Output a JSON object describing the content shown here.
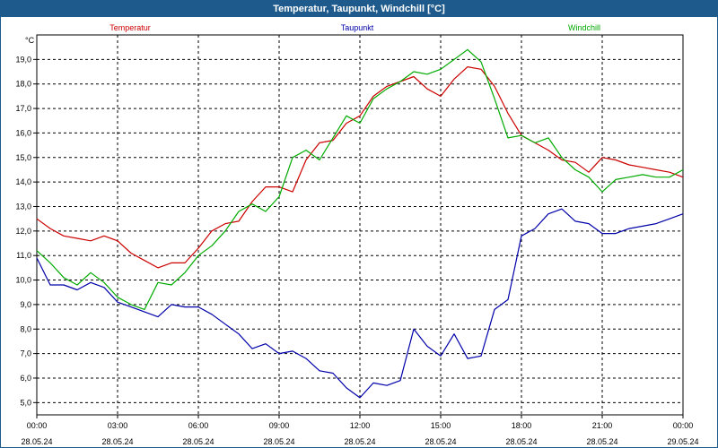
{
  "window": {
    "title": "Temperatur, Taupunkt, Windchill [°C]"
  },
  "chart_data": {
    "type": "line",
    "title": "Temperatur, Taupunkt, Windchill [°C]",
    "ylabel": "°C",
    "xlabel": "",
    "ylim": [
      4.5,
      20.0
    ],
    "xlim": [
      0,
      24
    ],
    "yticks": [
      5.0,
      6.0,
      7.0,
      8.0,
      9.0,
      10.0,
      11.0,
      12.0,
      13.0,
      14.0,
      15.0,
      16.0,
      17.0,
      18.0,
      19.0
    ],
    "ytick_labels": [
      "5,0",
      "6,0",
      "7,0",
      "8,0",
      "9,0",
      "10,0",
      "11,0",
      "12,0",
      "13,0",
      "14,0",
      "15,0",
      "16,0",
      "17,0",
      "18,0",
      "19,0"
    ],
    "xticks": [
      {
        "x": 0,
        "time": "00:00",
        "date": "28.05.24"
      },
      {
        "x": 3,
        "time": "03:00",
        "date": "28.05.24"
      },
      {
        "x": 6,
        "time": "06:00",
        "date": "28.05.24"
      },
      {
        "x": 9,
        "time": "09:00",
        "date": "28.05.24"
      },
      {
        "x": 12,
        "time": "12:00",
        "date": "28.05.24"
      },
      {
        "x": 15,
        "time": "15:00",
        "date": "28.05.24"
      },
      {
        "x": 18,
        "time": "18:00",
        "date": "28.05.24"
      },
      {
        "x": 21,
        "time": "21:00",
        "date": "28.05.24"
      },
      {
        "x": 24,
        "time": "00:00",
        "date": "29.05.24"
      }
    ],
    "grid": true,
    "legend_position": "top",
    "series": [
      {
        "name": "Temperatur",
        "color": "#cc0000",
        "x": [
          0,
          0.5,
          1.0,
          1.5,
          2.0,
          2.5,
          3.0,
          3.5,
          4.0,
          4.5,
          5.0,
          5.5,
          6.0,
          6.5,
          7.0,
          7.5,
          8.0,
          8.5,
          9.0,
          9.5,
          10.0,
          10.5,
          11.0,
          11.5,
          12.0,
          12.5,
          13.0,
          13.5,
          14.0,
          14.5,
          15.0,
          15.5,
          16.0,
          16.5,
          17.0,
          17.5,
          18.0,
          18.5,
          19.0,
          19.5,
          20.0,
          20.5,
          21.0,
          21.5,
          22.0,
          22.5,
          23.0,
          23.5,
          24.0
        ],
        "values": [
          12.5,
          12.1,
          11.8,
          11.7,
          11.6,
          11.8,
          11.6,
          11.1,
          10.8,
          10.5,
          10.7,
          10.7,
          11.3,
          12.0,
          12.3,
          12.4,
          13.2,
          13.8,
          13.8,
          13.6,
          14.9,
          15.6,
          15.7,
          16.4,
          16.7,
          17.5,
          17.9,
          18.1,
          18.3,
          17.8,
          17.5,
          18.2,
          18.7,
          18.6,
          17.9,
          16.8,
          15.9,
          15.6,
          15.3,
          14.9,
          14.8,
          14.4,
          15.0,
          14.9,
          14.7,
          14.6,
          14.5,
          14.4,
          14.2
        ]
      },
      {
        "name": "Taupunkt",
        "color": "#0000aa",
        "x": [
          0,
          0.5,
          1.0,
          1.5,
          2.0,
          2.5,
          3.0,
          3.5,
          4.0,
          4.5,
          5.0,
          5.5,
          6.0,
          6.5,
          7.0,
          7.5,
          8.0,
          8.5,
          9.0,
          9.5,
          10.0,
          10.5,
          11.0,
          11.5,
          12.0,
          12.5,
          13.0,
          13.5,
          14.0,
          14.5,
          15.0,
          15.5,
          16.0,
          16.5,
          17.0,
          17.5,
          18.0,
          18.5,
          19.0,
          19.5,
          20.0,
          20.5,
          21.0,
          21.5,
          22.0,
          22.5,
          23.0,
          23.5,
          24.0
        ],
        "values": [
          10.9,
          9.8,
          9.8,
          9.6,
          9.9,
          9.7,
          9.1,
          8.9,
          8.7,
          8.5,
          9.0,
          8.9,
          8.9,
          8.6,
          8.2,
          7.8,
          7.2,
          7.4,
          7.0,
          7.1,
          6.8,
          6.3,
          6.2,
          5.6,
          5.2,
          5.8,
          5.7,
          5.9,
          8.0,
          7.3,
          6.9,
          7.8,
          6.8,
          6.9,
          8.8,
          9.2,
          11.8,
          12.1,
          12.7,
          12.9,
          12.4,
          12.3,
          11.9,
          11.9,
          12.1,
          12.2,
          12.3,
          12.5,
          12.7
        ]
      },
      {
        "name": "Windchill",
        "color": "#00aa00",
        "x": [
          0,
          0.5,
          1.0,
          1.5,
          2.0,
          2.5,
          3.0,
          3.5,
          4.0,
          4.5,
          5.0,
          5.5,
          6.0,
          6.5,
          7.0,
          7.5,
          8.0,
          8.5,
          9.0,
          9.5,
          10.0,
          10.5,
          11.0,
          11.5,
          12.0,
          12.5,
          13.0,
          13.5,
          14.0,
          14.5,
          15.0,
          15.5,
          16.0,
          16.5,
          17.0,
          17.5,
          18.0,
          18.5,
          19.0,
          19.5,
          20.0,
          20.5,
          21.0,
          21.5,
          22.0,
          22.5,
          23.0,
          23.5,
          24.0
        ],
        "values": [
          11.2,
          10.7,
          10.1,
          9.8,
          10.3,
          9.9,
          9.3,
          9.0,
          8.8,
          9.9,
          9.8,
          10.3,
          11.0,
          11.4,
          12.0,
          12.8,
          13.1,
          12.8,
          13.4,
          15.0,
          15.3,
          14.9,
          15.8,
          16.7,
          16.4,
          17.4,
          17.8,
          18.1,
          18.5,
          18.4,
          18.6,
          19.0,
          19.4,
          18.9,
          17.4,
          15.8,
          15.9,
          15.6,
          15.8,
          15.0,
          14.5,
          14.2,
          13.6,
          14.1,
          14.2,
          14.3,
          14.2,
          14.2,
          14.5
        ]
      }
    ]
  }
}
